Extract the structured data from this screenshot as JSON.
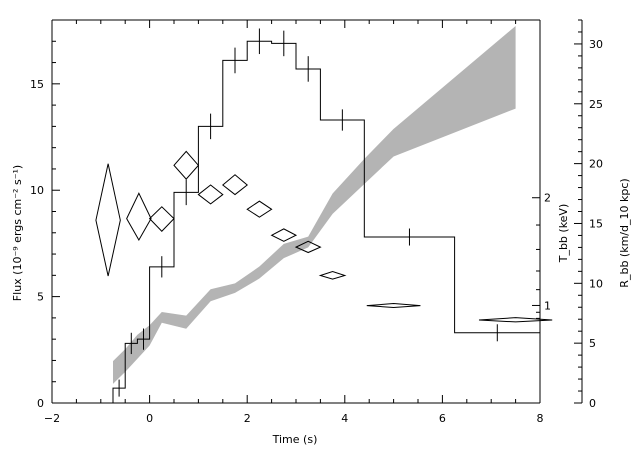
{
  "chart_data": {
    "type": "line",
    "xlabel": "Time (s)",
    "ylabel_left": "Flux (10⁻⁹ ergs cm⁻² s⁻¹)",
    "ylabel_right_inner": "T_bb (keV)",
    "ylabel_right_outer": "R_bb (km/d_10 kpc)",
    "xlim": [
      -2,
      8
    ],
    "ylim_left": [
      0,
      18
    ],
    "ylim_right_outer": [
      0,
      32
    ],
    "x_ticks": [
      "−2",
      "0",
      "2",
      "4",
      "6",
      "8"
    ],
    "left_ticks": [
      "0",
      "5",
      "10",
      "15"
    ],
    "right_outer_ticks": [
      "0",
      "5",
      "10",
      "15",
      "20",
      "25",
      "30"
    ],
    "inner_ticks": [
      {
        "label": "1",
        "value": 1
      },
      {
        "label": "2",
        "value": 2
      }
    ],
    "series": [
      {
        "kind": "step-histogram",
        "axis": "left",
        "bins": [
          {
            "x0": -0.75,
            "x1": -0.5,
            "y": 0.7,
            "err": 0.4
          },
          {
            "x0": -0.5,
            "x1": -0.25,
            "y": 2.8,
            "err": 0.5
          },
          {
            "x0": -0.25,
            "x1": 0.0,
            "y": 3.0,
            "err": 0.5
          },
          {
            "x0": 0.0,
            "x1": 0.5,
            "y": 6.4,
            "err": 0.5
          },
          {
            "x0": 0.5,
            "x1": 1.0,
            "y": 9.9,
            "err": 0.6
          },
          {
            "x0": 1.0,
            "x1": 1.5,
            "y": 13.0,
            "err": 0.6
          },
          {
            "x0": 1.5,
            "x1": 2.0,
            "y": 16.1,
            "err": 0.6
          },
          {
            "x0": 2.0,
            "x1": 2.5,
            "y": 17.0,
            "err": 0.6
          },
          {
            "x0": 2.5,
            "x1": 3.0,
            "y": 16.9,
            "err": 0.6
          },
          {
            "x0": 3.0,
            "x1": 3.5,
            "y": 15.7,
            "err": 0.6
          },
          {
            "x0": 3.5,
            "x1": 4.4,
            "y": 13.3,
            "err": 0.5
          },
          {
            "x0": 4.4,
            "x1": 6.25,
            "y": 7.8,
            "err": 0.4
          },
          {
            "x0": 6.25,
            "x1": 8.0,
            "y": 3.3,
            "err": 0.4
          }
        ]
      },
      {
        "kind": "diamonds",
        "axis": "right_inner",
        "points": [
          {
            "x": -0.85,
            "dx": 0.25,
            "y": 1.837,
            "ylo": 1.349,
            "yhi": 2.224
          },
          {
            "x": -0.22,
            "dx": 0.25,
            "y": 1.849,
            "ylo": 1.68,
            "yhi": 2.031
          },
          {
            "x": 0.25,
            "dx": 0.25,
            "y": 1.849,
            "ylo": 1.751,
            "yhi": 1.936
          },
          {
            "x": 0.75,
            "dx": 0.25,
            "y": 2.214,
            "ylo": 2.126,
            "yhi": 2.3
          },
          {
            "x": 1.25,
            "dx": 0.25,
            "y": 2.022,
            "ylo": 1.957,
            "yhi": 2.087
          },
          {
            "x": 1.75,
            "dx": 0.25,
            "y": 2.087,
            "ylo": 2.022,
            "yhi": 2.154
          },
          {
            "x": 2.25,
            "dx": 0.25,
            "y": 1.918,
            "ylo": 1.86,
            "yhi": 1.976
          },
          {
            "x": 2.75,
            "dx": 0.25,
            "y": 1.719,
            "ylo": 1.669,
            "yhi": 1.77
          },
          {
            "x": 3.25,
            "dx": 0.25,
            "y": 1.62,
            "ylo": 1.573,
            "yhi": 1.669
          },
          {
            "x": 3.75,
            "dx": 0.25,
            "y": 1.354,
            "ylo": 1.317,
            "yhi": 1.394
          },
          {
            "x": 5.0,
            "dx": 0.55,
            "y": 0.998,
            "ylo": 0.971,
            "yhi": 1.026
          },
          {
            "x": 7.5,
            "dx": 0.75,
            "y": 0.771,
            "ylo": 0.736,
            "yhi": 0.812
          }
        ]
      },
      {
        "kind": "band",
        "axis": "right_outer",
        "x": [
          -0.75,
          -0.5,
          -0.25,
          0.0,
          0.25,
          0.75,
          1.25,
          1.75,
          2.25,
          2.75,
          3.25,
          3.75,
          4.4,
          5.0,
          7.5
        ],
        "lower": [
          1.6,
          2.6,
          3.7,
          4.8,
          6.7,
          6.2,
          8.5,
          9.2,
          10.4,
          12.1,
          13.0,
          15.8,
          18.3,
          20.6,
          24.6
        ],
        "upper": [
          3.5,
          4.5,
          5.7,
          6.5,
          7.6,
          7.3,
          9.5,
          10.0,
          11.4,
          13.3,
          13.9,
          17.5,
          20.4,
          22.9,
          31.5
        ]
      }
    ]
  }
}
